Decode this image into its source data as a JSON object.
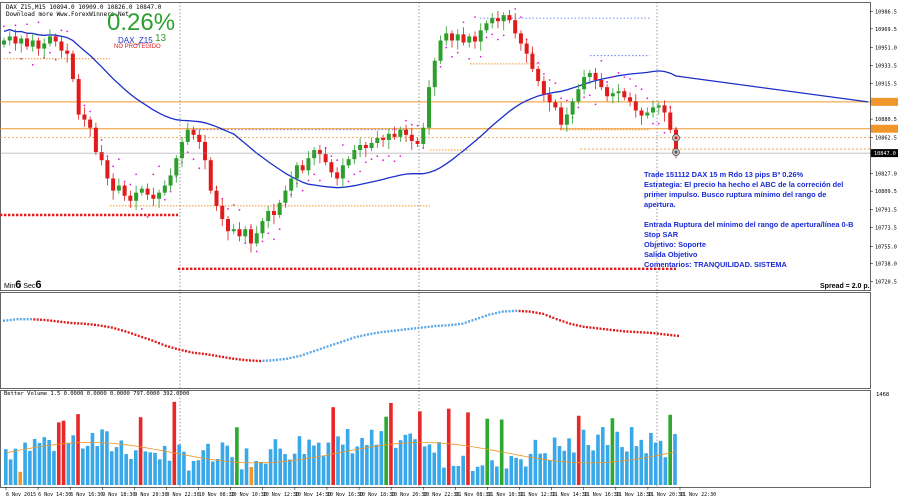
{
  "header": {
    "symbol_line": "DAX_Z15,M15  10894.0 10909.0 10826.0 10847.0",
    "download_line": "Download more Www.ForexWinners.Net",
    "percent": "0.26%",
    "symbol_tag": "DAX_Z15",
    "symbol_tag_value": "13",
    "status": "NO PROTEGIDO"
  },
  "timer": {
    "min_label": "Min",
    "min_value": "6",
    "sec_label": "Sec",
    "sec_value": "6"
  },
  "spread": "Spread = 2.0 p.",
  "annotation": {
    "line1": "Trade 151112 DAX 15 m Rdo 13 pips Bº 0.26%",
    "line2": "Estrategia: El precio ha hecho el ABC de la correción del",
    "line3": "primer impulso. Busco ruptura mínimo del rango de",
    "line4": "apertura.",
    "line5": "Entrada Ruptura del mínimo del rango de apertura/línea 0-B",
    "line6": "Stop SAR",
    "line7": "Objetivo: Soporte",
    "line8": "Salida Objetivo",
    "line9": "Comentarios: TRANQUILIDAD. SISTEMA"
  },
  "volume_label": "Better Volume 1.5  0.0000 0.0000 0.0000 797.0000 392.0000",
  "volume_axis_label": "1468",
  "colors": {
    "bull": "#2e9e2e",
    "bear": "#e11b1b",
    "ma": "#1c2fc8",
    "level": "#f0962a",
    "sar": "#e020e0",
    "blue_dots": "#4f6cf0",
    "price_tag": "#000000",
    "vol_blue": "#38a8e8",
    "vol_red": "#e82828",
    "vol_green": "#2ea82e",
    "vol_orange": "#f0962a"
  },
  "chart_data": [
    {
      "type": "candlestick",
      "title": "DAX_Z15,M15",
      "y_ticks": [
        "10986.5",
        "10969.5",
        "10951.0",
        "10933.5",
        "10915.5",
        "10897.5",
        "10880.5",
        "10862.5",
        "10847.0",
        "10827.0",
        "10809.5",
        "10791.5",
        "10773.5",
        "10755.0",
        "10738.0",
        "10720.5"
      ],
      "ylim": [
        10717,
        10991
      ],
      "current_price": 10847.0,
      "levels": [
        10897.5,
        10871.0,
        10862.5,
        10851.0
      ],
      "x_ticks": [
        "6 Nov 2015",
        "6 Nov 14:30",
        "6 Nov 16:30",
        "9 Nov 18:30",
        "9 Nov 20:30",
        "9 Nov 22:30",
        "10 Nov 08:30",
        "10 Nov 10:30",
        "10 Nov 12:30",
        "10 Nov 14:30",
        "10 Nov 16:30",
        "10 Nov 18:30",
        "10 Nov 20:30",
        "10 Nov 22:30",
        "11 Nov 08:30",
        "11 Nov 10:30",
        "11 Nov 12:30",
        "11 Nov 14:30",
        "11 Nov 16:30",
        "11 Nov 18:30",
        "11 Nov 20:30",
        "11 Nov 22:30"
      ],
      "closes": [
        10958,
        10962,
        10955,
        10960,
        10952,
        10958,
        10950,
        10955,
        10962,
        10957,
        10948,
        10945,
        10920,
        10885,
        10880,
        10872,
        10848,
        10840,
        10822,
        10810,
        10815,
        10805,
        10800,
        10808,
        10812,
        10806,
        10802,
        10808,
        10815,
        10825,
        10842,
        10858,
        10870,
        10865,
        10858,
        10840,
        10810,
        10795,
        10782,
        10770,
        10772,
        10765,
        10772,
        10758,
        10768,
        10780,
        10790,
        10786,
        10798,
        10810,
        10822,
        10835,
        10830,
        10842,
        10850,
        10846,
        10838,
        10828,
        10822,
        10835,
        10841,
        10850,
        10855,
        10852,
        10857,
        10862,
        10860,
        10866,
        10863,
        10870,
        10865,
        10859,
        10856,
        10872,
        10912,
        10938,
        10958,
        10965,
        10958,
        10964,
        10956,
        10962,
        10957,
        10968,
        10975,
        10980,
        10977,
        10983,
        10978,
        10965,
        10955,
        10945,
        10930,
        10918,
        10905,
        10897,
        10892,
        10875,
        10885,
        10898,
        10910,
        10922,
        10926,
        10919,
        10912,
        10903,
        10906,
        10908,
        10902,
        10898,
        10889,
        10884,
        10887,
        10892,
        10894,
        10887,
        10870,
        10847
      ],
      "sma_last": 10897.5
    },
    {
      "type": "line",
      "title": "oscillator",
      "points": [
        0.78,
        0.8,
        0.8,
        0.79,
        0.77,
        0.75,
        0.74,
        0.72,
        0.69,
        0.64,
        0.58,
        0.52,
        0.45,
        0.4,
        0.36,
        0.34,
        0.31,
        0.28,
        0.26,
        0.25,
        0.26,
        0.28,
        0.32,
        0.38,
        0.44,
        0.5,
        0.56,
        0.6,
        0.63,
        0.65,
        0.67,
        0.69,
        0.71,
        0.72,
        0.74,
        0.8,
        0.86,
        0.9,
        0.91,
        0.9,
        0.87,
        0.8,
        0.74,
        0.7,
        0.68,
        0.66,
        0.64,
        0.63,
        0.62,
        0.6,
        0.58
      ]
    },
    {
      "type": "bar",
      "title": "Better Volume 1.5",
      "ylim": [
        0,
        1468
      ]
    }
  ]
}
